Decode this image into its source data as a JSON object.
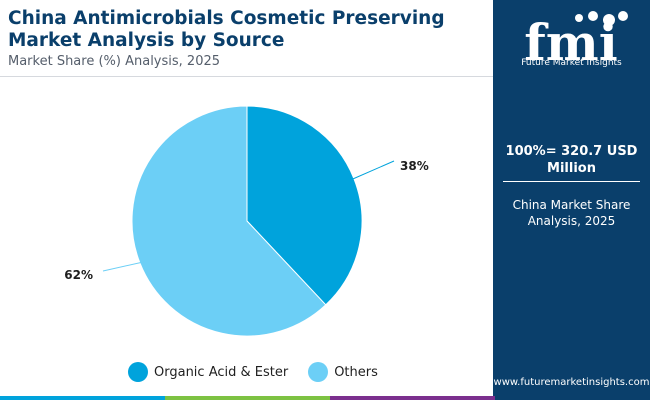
{
  "header": {
    "title": "China Antimicrobials Cosmetic Preserving Market Analysis by Source",
    "subtitle": "Market Share (%) Analysis, 2025"
  },
  "chart_data": {
    "type": "pie",
    "categories": [
      "Organic Acid & Ester",
      "Others"
    ],
    "values": [
      38,
      62
    ],
    "value_labels": [
      "38%",
      "62%"
    ],
    "colors": [
      "#00a3dc",
      "#6ccff6"
    ],
    "legend_position": "bottom"
  },
  "sidebar": {
    "brand_name": "Future Market Insights",
    "total_value": "100%= 320.7 USD Million",
    "description": "China Market Share Analysis, 2025",
    "website": "www.futuremarketinsights.com",
    "background_color": "#0a3f6b"
  },
  "bottom_bar_colors": [
    "#00a3dc",
    "#7dc242",
    "#7b2f8e",
    "#0a3f6b"
  ]
}
